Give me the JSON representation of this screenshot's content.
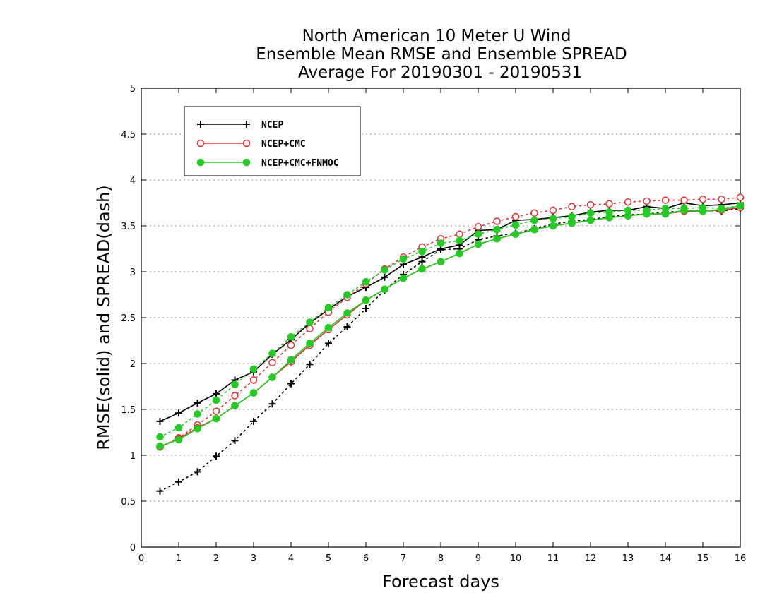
{
  "chart_data": {
    "type": "line",
    "title_lines": [
      "North American 10 Meter U Wind",
      "Ensemble Mean RMSE and Ensemble SPREAD",
      "Average For 20190301 - 20190531"
    ],
    "xlabel": "Forecast days",
    "ylabel": "RMSE(solid) and SPREAD(dash)",
    "xlim": [
      0,
      16
    ],
    "ylim": [
      0,
      5
    ],
    "xticks": [
      "0",
      "1",
      "2",
      "3",
      "4",
      "5",
      "6",
      "7",
      "8",
      "9",
      "10",
      "11",
      "12",
      "13",
      "14",
      "15",
      "16"
    ],
    "yticks": [
      "0",
      "0.5",
      "1",
      "1.5",
      "2",
      "2.5",
      "3",
      "3.5",
      "4",
      "4.5",
      "5"
    ],
    "grid": true,
    "legend_position": "top-left",
    "x": [
      0.5,
      1,
      1.5,
      2,
      2.5,
      3,
      3.5,
      4,
      4.5,
      5,
      5.5,
      6,
      6.5,
      7,
      7.5,
      8,
      8.5,
      9,
      9.5,
      10,
      10.5,
      11,
      11.5,
      12,
      12.5,
      13,
      13.5,
      14,
      14.5,
      15,
      15.5,
      16
    ],
    "series": [
      {
        "name": "NCEP",
        "color": "#000000",
        "marker": "plus",
        "rmse": [
          1.37,
          1.46,
          1.57,
          1.67,
          1.82,
          1.91,
          2.1,
          2.26,
          2.44,
          2.59,
          2.73,
          2.83,
          2.94,
          3.08,
          3.16,
          3.25,
          3.29,
          3.45,
          3.46,
          3.56,
          3.57,
          3.59,
          3.61,
          3.65,
          3.67,
          3.67,
          3.71,
          3.69,
          3.75,
          3.72,
          3.73,
          3.75
        ],
        "spread": [
          0.61,
          0.71,
          0.82,
          0.99,
          1.16,
          1.37,
          1.56,
          1.78,
          1.99,
          2.22,
          2.4,
          2.6,
          2.8,
          2.97,
          3.11,
          3.24,
          3.25,
          3.35,
          3.39,
          3.42,
          3.47,
          3.52,
          3.55,
          3.57,
          3.6,
          3.62,
          3.63,
          3.65,
          3.66,
          3.67,
          3.66,
          3.69
        ]
      },
      {
        "name": "NCEP+CMC",
        "color": "#e03030",
        "marker": "open-circle",
        "rmse": [
          1.09,
          1.18,
          1.3,
          1.4,
          1.54,
          1.68,
          1.85,
          2.02,
          2.2,
          2.37,
          2.53,
          2.69,
          2.81,
          2.93,
          3.03,
          3.11,
          3.2,
          3.3,
          3.36,
          3.41,
          3.46,
          3.5,
          3.53,
          3.56,
          3.59,
          3.61,
          3.63,
          3.63,
          3.66,
          3.66,
          3.67,
          3.7
        ],
        "spread": [
          1.09,
          1.19,
          1.33,
          1.48,
          1.65,
          1.82,
          2.01,
          2.2,
          2.38,
          2.56,
          2.72,
          2.87,
          3.03,
          3.16,
          3.27,
          3.36,
          3.41,
          3.49,
          3.55,
          3.6,
          3.64,
          3.67,
          3.71,
          3.73,
          3.74,
          3.76,
          3.77,
          3.78,
          3.78,
          3.79,
          3.79,
          3.81
        ]
      },
      {
        "name": "NCEP+CMC+FNMOC",
        "color": "#22cc22",
        "marker": "filled-circle",
        "rmse": [
          1.1,
          1.17,
          1.29,
          1.4,
          1.54,
          1.68,
          1.85,
          2.04,
          2.22,
          2.39,
          2.55,
          2.69,
          2.81,
          2.93,
          3.03,
          3.11,
          3.2,
          3.3,
          3.36,
          3.41,
          3.46,
          3.5,
          3.53,
          3.56,
          3.59,
          3.61,
          3.63,
          3.63,
          3.67,
          3.66,
          3.68,
          3.72
        ],
        "spread": [
          1.2,
          1.3,
          1.45,
          1.6,
          1.77,
          1.94,
          2.11,
          2.29,
          2.45,
          2.61,
          2.75,
          2.89,
          3.02,
          3.14,
          3.22,
          3.31,
          3.34,
          3.41,
          3.46,
          3.51,
          3.56,
          3.58,
          3.6,
          3.64,
          3.65,
          3.67,
          3.67,
          3.69,
          3.69,
          3.7,
          3.69,
          3.72
        ]
      }
    ]
  }
}
